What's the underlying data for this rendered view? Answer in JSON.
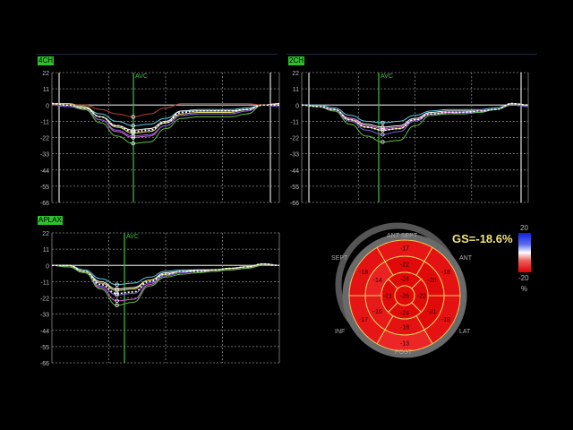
{
  "chart_data": [
    {
      "type": "line",
      "panel": "4CH",
      "marker": "AVC",
      "ylim": [
        -66,
        22
      ],
      "yticks": [
        22,
        11,
        0,
        -11,
        -22,
        -33,
        -44,
        -55,
        -66
      ],
      "grid": true,
      "series": [
        {
          "color": "#5fc8e8",
          "values": [
            1,
            0,
            -2,
            -6,
            -11,
            -14,
            -13,
            -9,
            -4,
            -3,
            -3,
            -3,
            -2,
            0,
            1
          ]
        },
        {
          "color": "#ffffff",
          "values": [
            1,
            0,
            -2,
            -8,
            -14,
            -17,
            -16,
            -11,
            -4,
            -4,
            -4,
            -4,
            -3,
            0,
            1
          ]
        },
        {
          "color": "#e8e070",
          "values": [
            1,
            1,
            -1,
            -8,
            -15,
            -19,
            -18,
            -12,
            -6,
            -5,
            -5,
            -5,
            -3,
            0,
            0
          ]
        },
        {
          "color": "#e060e0",
          "values": [
            0,
            -1,
            -3,
            -10,
            -18,
            -22,
            -21,
            -14,
            -7,
            -6,
            -6,
            -6,
            -4,
            0,
            0
          ]
        },
        {
          "color": "#8060e0",
          "values": [
            0,
            -1,
            -3,
            -10,
            -17,
            -21,
            -20,
            -14,
            -7,
            -6,
            -6,
            -6,
            -4,
            0,
            -1
          ]
        },
        {
          "color": "#60c040",
          "values": [
            1,
            0,
            -3,
            -12,
            -21,
            -26,
            -25,
            -16,
            -9,
            -8,
            -8,
            -8,
            -6,
            0,
            0
          ]
        },
        {
          "color": "#b04030",
          "values": [
            0,
            0,
            0,
            -3,
            -6,
            -8,
            -6,
            -2,
            1,
            1,
            1,
            1,
            1,
            0,
            0
          ]
        },
        {
          "color": "#ffffff",
          "dashed": true,
          "values": [
            1,
            0,
            -2,
            -8,
            -14,
            -18,
            -17,
            -12,
            -5,
            -4,
            -4,
            -4,
            -3,
            0,
            0
          ]
        }
      ]
    },
    {
      "type": "line",
      "panel": "2CH",
      "marker": "AVC",
      "ylim": [
        -66,
        22
      ],
      "yticks": [
        22,
        11,
        0,
        -11,
        -22,
        -33,
        -44,
        -55,
        -66
      ],
      "grid": true,
      "series": [
        {
          "color": "#5fc8e8",
          "values": [
            0,
            0,
            -2,
            -7,
            -11,
            -12,
            -11,
            -7,
            -4,
            -3,
            -3,
            -3,
            -2,
            1,
            0
          ]
        },
        {
          "color": "#ffffff",
          "values": [
            0,
            -1,
            -3,
            -9,
            -13,
            -15,
            -14,
            -9,
            -5,
            -4,
            -4,
            -4,
            -3,
            1,
            0
          ]
        },
        {
          "color": "#e8e070",
          "values": [
            0,
            -1,
            -3,
            -10,
            -15,
            -17,
            -16,
            -10,
            -6,
            -5,
            -5,
            -4,
            -3,
            1,
            0
          ]
        },
        {
          "color": "#e060e0",
          "values": [
            0,
            -1,
            -3,
            -9,
            -14,
            -16,
            -15,
            -10,
            -6,
            -5,
            -5,
            -4,
            -3,
            1,
            -1
          ]
        },
        {
          "color": "#8060e0",
          "values": [
            0,
            -1,
            -4,
            -11,
            -17,
            -20,
            -18,
            -11,
            -6,
            -6,
            -5,
            -5,
            -3,
            0,
            -1
          ]
        },
        {
          "color": "#60c040",
          "values": [
            0,
            -1,
            -4,
            -13,
            -21,
            -25,
            -24,
            -14,
            -7,
            -6,
            -6,
            -5,
            -3,
            0,
            0
          ]
        },
        {
          "color": "#ffffff",
          "dashed": true,
          "values": [
            0,
            -1,
            -3,
            -10,
            -15,
            -17,
            -16,
            -10,
            -6,
            -5,
            -5,
            -4,
            -3,
            1,
            0
          ]
        }
      ]
    },
    {
      "type": "line",
      "panel": "APLAX",
      "marker": "AVC",
      "ylim": [
        -66,
        22
      ],
      "yticks": [
        22,
        11,
        0,
        -11,
        -22,
        -33,
        -44,
        -55,
        -66
      ],
      "grid": true,
      "series": [
        {
          "color": "#5fc8e8",
          "values": [
            0,
            0,
            -3,
            -9,
            -13,
            -12,
            -8,
            -4,
            -3,
            -3,
            -3,
            -2,
            -1,
            1,
            0
          ]
        },
        {
          "color": "#ffffff",
          "values": [
            0,
            0,
            -4,
            -11,
            -16,
            -15,
            -10,
            -5,
            -4,
            -3,
            -3,
            -2,
            -1,
            1,
            0
          ]
        },
        {
          "color": "#e8e070",
          "values": [
            0,
            0,
            -4,
            -12,
            -17,
            -16,
            -10,
            -6,
            -4,
            -4,
            -3,
            -2,
            -1,
            1,
            0
          ]
        },
        {
          "color": "#e060e0",
          "values": [
            0,
            -1,
            -5,
            -15,
            -24,
            -23,
            -13,
            -7,
            -5,
            -4,
            -4,
            -3,
            -2,
            0,
            0
          ]
        },
        {
          "color": "#8060e0",
          "values": [
            0,
            -1,
            -5,
            -14,
            -20,
            -19,
            -12,
            -7,
            -5,
            -4,
            -4,
            -3,
            -2,
            0,
            0
          ]
        },
        {
          "color": "#60c040",
          "values": [
            0,
            -1,
            -5,
            -16,
            -27,
            -25,
            -14,
            -8,
            -6,
            -5,
            -4,
            -3,
            -2,
            0,
            0
          ]
        },
        {
          "color": "#ffffff",
          "dashed": true,
          "values": [
            0,
            0,
            -4,
            -13,
            -19,
            -18,
            -11,
            -6,
            -4,
            -4,
            -3,
            -2,
            -1,
            1,
            0
          ]
        }
      ]
    }
  ],
  "bullseye": {
    "gs_label": "GS=-18.6%",
    "directions": {
      "ant_sept": "ANT SEPT",
      "ant": "ANT",
      "lat": "LAT",
      "post": "POST",
      "inf": "INF",
      "sept": "SEPT"
    },
    "basal": [
      "-17",
      "-18",
      "-18",
      "-13",
      "-17",
      "-18"
    ],
    "mid": [
      "-22",
      "-20",
      "-21",
      "-18",
      "-16",
      "-14"
    ],
    "apical": [
      "-24",
      "-22",
      "-24",
      "-21"
    ],
    "apex": "-26",
    "colorbar": {
      "max": "20",
      "min": "-20",
      "unit": "%",
      "colors": [
        "#1020e0",
        "#ffffff",
        "#e00000"
      ]
    }
  }
}
